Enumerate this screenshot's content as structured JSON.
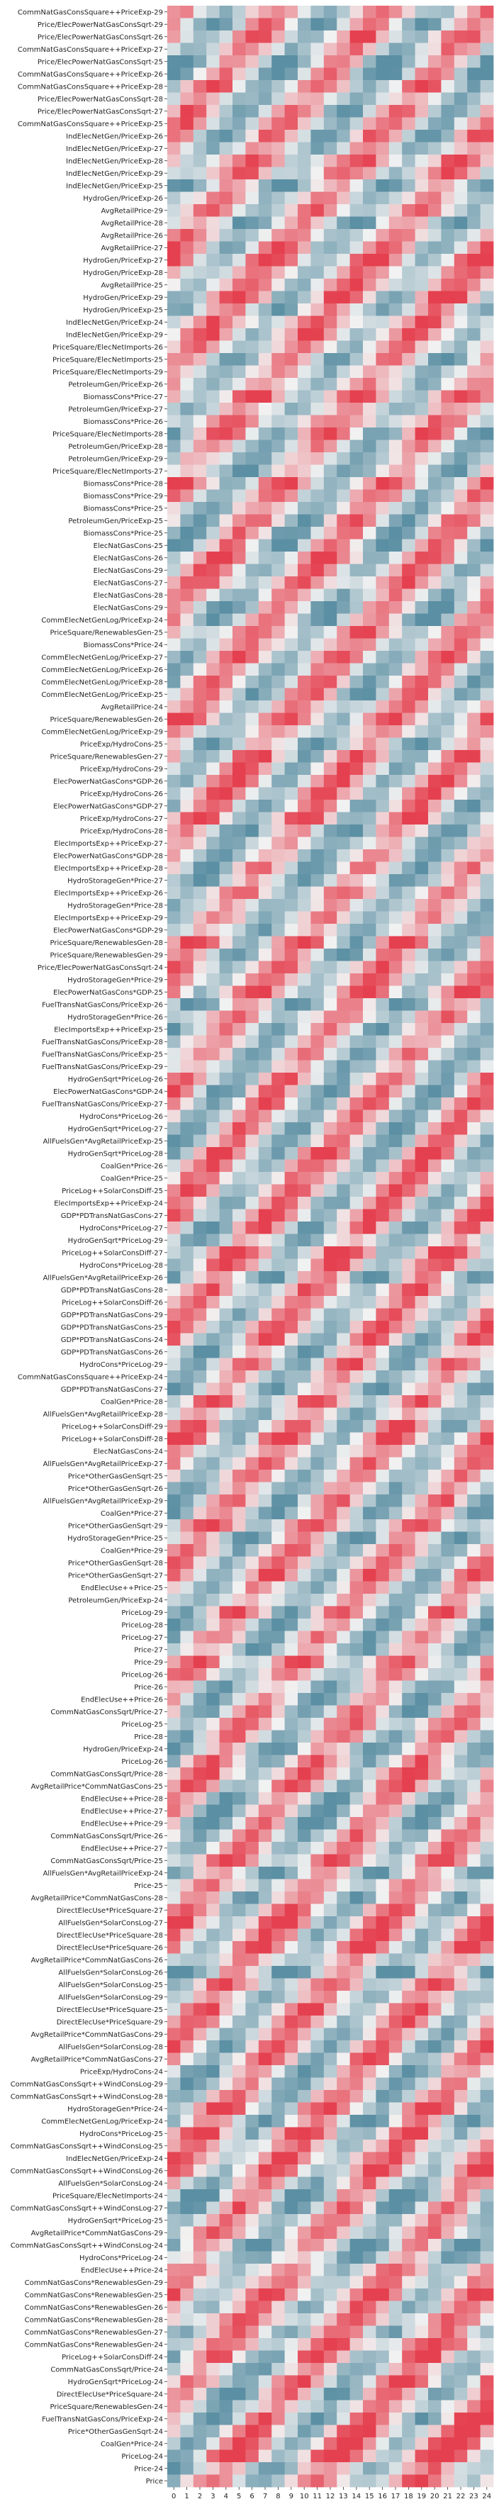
{
  "chart_data": {
    "type": "heatmap",
    "title": "",
    "xlabel": "",
    "ylabel": "",
    "x_ticks": [
      "0",
      "1",
      "2",
      "3",
      "4",
      "5",
      "6",
      "7",
      "8",
      "9",
      "10",
      "11",
      "12",
      "13",
      "14",
      "15",
      "16",
      "17",
      "18",
      "19",
      "20",
      "21",
      "22",
      "23",
      "24"
    ],
    "rows": [
      "CommNatGasConsSquare++PriceExp-29",
      "Price/ElecPowerNatGasConsSqrt-29",
      "Price/ElecPowerNatGasConsSqrt-26",
      "CommNatGasConsSquare++PriceExp-27",
      "Price/ElecPowerNatGasConsSqrt-25",
      "CommNatGasConsSquare++PriceExp-26",
      "CommNatGasConsSquare++PriceExp-28",
      "Price/ElecPowerNatGasConsSqrt-28",
      "Price/ElecPowerNatGasConsSqrt-27",
      "CommNatGasConsSquare++PriceExp-25",
      "IndElecNetGen/PriceExp-26",
      "IndElecNetGen/PriceExp-27",
      "IndElecNetGen/PriceExp-28",
      "IndElecNetGen/PriceExp-29",
      "IndElecNetGen/PriceExp-25",
      "HydroGen/PriceExp-26",
      "AvgRetailPrice-29",
      "AvgRetailPrice-28",
      "AvgRetailPrice-26",
      "AvgRetailPrice-27",
      "HydroGen/PriceExp-27",
      "HydroGen/PriceExp-28",
      "AvgRetailPrice-25",
      "HydroGen/PriceExp-29",
      "HydroGen/PriceExp-25",
      "IndElecNetGen/PriceExp-24",
      "IndElecNetGen/PriceExp-29",
      "PriceSquare/ElecNetImports-26",
      "PriceSquare/ElecNetImports-25",
      "PriceSquare/ElecNetImports-29",
      "PetroleumGen/PriceExp-26",
      "BiomassCons*Price-27",
      "PetroleumGen/PriceExp-27",
      "BiomassCons*Price-26",
      "PriceSquare/ElecNetImports-28",
      "PetroleumGen/PriceExp-28",
      "PetroleumGen/PriceExp-29",
      "PriceSquare/ElecNetImports-27",
      "BiomassCons*Price-28",
      "BiomassCons*Price-29",
      "BiomassCons*Price-25",
      "PetroleumGen/PriceExp-25",
      "BiomassCons*Price-25",
      "ElecNatGasCons-25",
      "ElecNatGasCons-26",
      "ElecNatGasCons-29",
      "ElecNatGasCons-27",
      "ElecNatGasCons-28",
      "ElecNatGasCons-29",
      "CommElecNetGenLog/PriceExp-24",
      "PriceSquare/RenewablesGen-25",
      "BiomassCons*Price-24",
      "CommElecNetGenLog/PriceExp-27",
      "CommElecNetGenLog/PriceExp-26",
      "CommElecNetGenLog/PriceExp-28",
      "CommElecNetGenLog/PriceExp-25",
      "AvgRetailPrice-24",
      "PriceSquare/RenewablesGen-26",
      "CommElecNetGenLog/PriceExp-29",
      "PriceExp/HydroCons-25",
      "PriceSquare/RenewablesGen-27",
      "PriceExp/HydroCons-29",
      "ElecPowerNatGasCons*GDP-26",
      "PriceExp/HydroCons-26",
      "ElecPowerNatGasCons*GDP-27",
      "PriceExp/HydroCons-27",
      "PriceExp/HydroCons-28",
      "ElecImportsExp++PriceExp-27",
      "ElecPowerNatGasCons*GDP-28",
      "ElecImportsExp++PriceExp-28",
      "HydroStorageGen*Price-27",
      "ElecImportsExp++PriceExp-26",
      "HydroStorageGen*Price-28",
      "ElecImportsExp++PriceExp-29",
      "ElecPowerNatGasCons*GDP-29",
      "PriceSquare/RenewablesGen-28",
      "PriceSquare/RenewablesGen-29",
      "Price/ElecPowerNatGasConsSqrt-24",
      "HydroStorageGen*Price-29",
      "ElecPowerNatGasCons*GDP-25",
      "FuelTransNatGasCons/PriceExp-26",
      "HydroStorageGen*Price-26",
      "ElecImportsExp++PriceExp-25",
      "FuelTransNatGasCons/PriceExp-28",
      "FuelTransNatGasCons/PriceExp-25",
      "FuelTransNatGasCons/PriceExp-29",
      "HydroGenSqrt*PriceLog-26",
      "ElecPowerNatGasCons*GDP-24",
      "FuelTransNatGasCons/PriceExp-27",
      "HydroCons*PriceLog-26",
      "HydroGenSqrt*PriceLog-27",
      "AllFuelsGen*AvgRetailPriceExp-25",
      "HydroGenSqrt*PriceLog-28",
      "CoalGen*Price-26",
      "CoalGen*Price-25",
      "PriceLog++SolarConsDiff-25",
      "ElecImportsExp++PriceExp-24",
      "GDP*PDTransNatGasCons-27",
      "HydroCons*PriceLog-27",
      "HydroGenSqrt*PriceLog-29",
      "PriceLog++SolarConsDiff-27",
      "HydroCons*PriceLog-28",
      "AllFuelsGen*AvgRetailPriceExp-26",
      "GDP*PDTransNatGasCons-28",
      "PriceLog++SolarConsDiff-26",
      "GDP*PDTransNatGasCons-29",
      "GDP*PDTransNatGasCons-25",
      "GDP*PDTransNatGasCons-24",
      "GDP*PDTransNatGasCons-26",
      "HydroCons*PriceLog-29",
      "CommNatGasConsSquare++PriceExp-24",
      "GDP*PDTransNatGasCons-27",
      "CoalGen*Price-28",
      "AllFuelsGen*AvgRetailPriceExp-28",
      "PriceLog++SolarConsDiff-29",
      "PriceLog++SolarConsDiff-28",
      "ElecNatGasCons-24",
      "AllFuelsGen*AvgRetailPriceExp-27",
      "Price*OtherGasGenSqrt-25",
      "Price*OtherGasGenSqrt-26",
      "AllFuelsGen*AvgRetailPriceExp-29",
      "CoalGen*Price-27",
      "Price*OtherGasGenSqrt-29",
      "HydroStorageGen*Price-25",
      "CoalGen*Price-29",
      "Price*OtherGasGenSqrt-28",
      "Price*OtherGasGenSqrt-27",
      "EndElecUse++Price-25",
      "PetroleumGen/PriceExp-24",
      "PriceLog-29",
      "PriceLog-28",
      "PriceLog-27",
      "Price-27",
      "Price-29",
      "PriceLog-26",
      "Price-26",
      "EndElecUse++Price-26",
      "CommNatGasConsSqrt/Price-27",
      "PriceLog-25",
      "Price-28",
      "HydroGen/PriceExp-24",
      "PriceLog-26",
      "CommNatGasConsSqrt/Price-28",
      "AvgRetailPrice*CommNatGasCons-25",
      "EndElecUse++Price-28",
      "EndElecUse++Price-27",
      "EndElecUse++Price-29",
      "CommNatGasConsSqrt/Price-26",
      "EndElecUse++Price-27",
      "CommNatGasConsSqrt/Price-25",
      "AllFuelsGen*AvgRetailPriceExp-24",
      "Price-25",
      "AvgRetailPrice*CommNatGasCons-28",
      "DirectElecUse*PriceSquare-27",
      "AllFuelsGen*SolarConsLog-27",
      "DirectElecUse*PriceSquare-28",
      "DirectElecUse*PriceSquare-26",
      "AvgRetailPrice*CommNatGasCons-26",
      "AllFuelsGen*SolarConsLog-26",
      "AllFuelsGen*SolarConsLog-25",
      "AllFuelsGen*SolarConsLog-29",
      "DirectElecUse*PriceSquare-25",
      "DirectElecUse*PriceSquare-29",
      "AvgRetailPrice*CommNatGasCons-29",
      "AllFuelsGen*SolarConsLog-28",
      "AvgRetailPrice*CommNatGasCons-27",
      "PriceExp/HydroCons-24",
      "CommNatGasConsSqrt++WindConsLog-29",
      "CommNatGasConsSqrt++WindConsLog-28",
      "HydroStorageGen*Price-24",
      "CommElecNetGenLog/PriceExp-24",
      "HydroCons*PriceLog-25",
      "CommNatGasConsSqrt++WindConsLog-25",
      "IndElecNetGen/PriceExp-24",
      "CommNatGasConsSqrt++WindConsLog-26",
      "AllFuelsGen*SolarConsLog-24",
      "PriceSquare/ElecNetImports-24",
      "CommNatGasConsSqrt++WindConsLog-27",
      "HydroGenSqrt*PriceLog-25",
      "AvgRetailPrice*CommNatGasCons-29",
      "CommNatGasConsSqrt++WindConsLog-24",
      "HydroCons*PriceLog-24",
      "EndElecUse++Price-24",
      "CommNatGasCons*RenewablesGen-29",
      "CommNatGasCons*RenewablesGen-25",
      "CommNatGasCons*RenewablesGen-26",
      "CommNatGasCons*RenewablesGen-28",
      "CommNatGasCons*RenewablesGen-27",
      "CommNatGasCons*RenewablesGen-24",
      "PriceLog++SolarConsDiff-24",
      "CommNatGasConsSqrt/Price-24",
      "HydroGenSqrt*PriceLog-24",
      "DirectElecUse*PriceSquare-24",
      "PriceSquare/RenewablesGen-24",
      "FuelTransNatGasCons/PriceExp-24",
      "Price*OtherGasGenSqrt-24",
      "CoalGen*Price-24",
      "PriceLog-24",
      "Price-24",
      "Price"
    ],
    "color_scale": {
      "type": "diverging",
      "low": "#5b8fa3",
      "mid": "#f2f2f2",
      "high": "#e5404f"
    },
    "colorbar": "none",
    "grid": false
  }
}
